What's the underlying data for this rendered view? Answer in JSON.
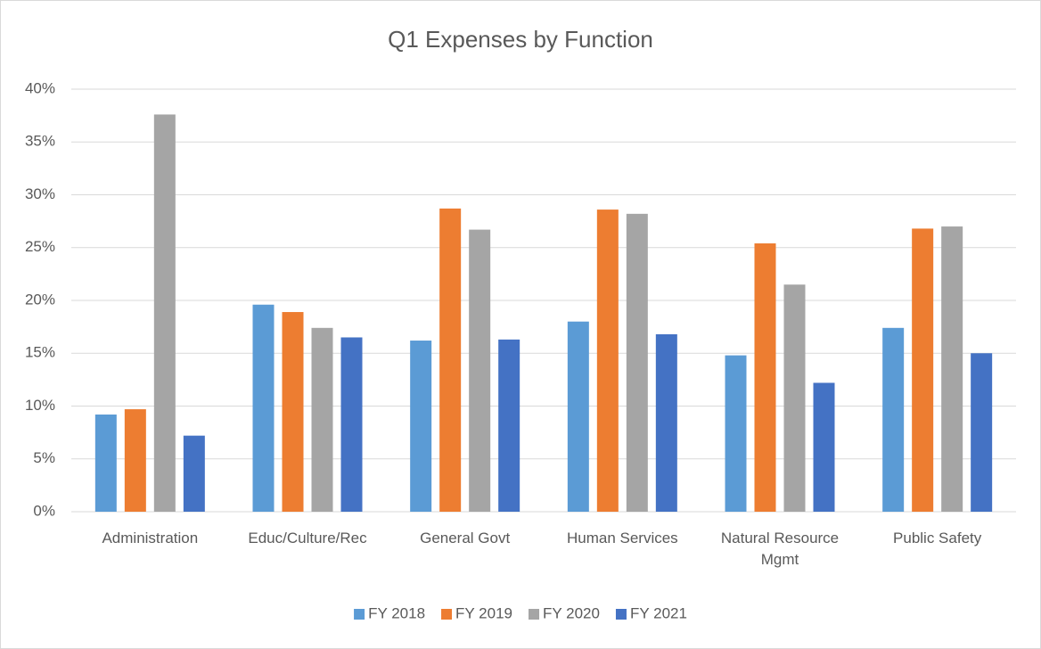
{
  "chart_data": {
    "type": "bar",
    "title": "Q1 Expenses by Function",
    "categories": [
      "Administration",
      "Educ/Culture/Rec",
      "General Govt",
      "Human Services",
      "Natural Resource Mgmt",
      "Public Safety"
    ],
    "series": [
      {
        "name": "FY 2018",
        "color": "#5b9bd5",
        "values": [
          9.2,
          19.6,
          16.2,
          18.0,
          14.8,
          17.4
        ]
      },
      {
        "name": "FY 2019",
        "color": "#ed7d31",
        "values": [
          9.7,
          18.9,
          28.7,
          28.6,
          25.4,
          26.8
        ]
      },
      {
        "name": "FY 2020",
        "color": "#a5a5a5",
        "values": [
          37.6,
          17.4,
          26.7,
          28.2,
          21.5,
          27.0
        ]
      },
      {
        "name": "FY 2021",
        "color": "#4472c4",
        "values": [
          7.2,
          16.5,
          16.3,
          16.8,
          12.2,
          15.0
        ]
      }
    ],
    "ylim": [
      0,
      40
    ],
    "yticks": [
      {
        "value": 0,
        "label": "0%"
      },
      {
        "value": 5,
        "label": "5%"
      },
      {
        "value": 10,
        "label": "10%"
      },
      {
        "value": 15,
        "label": "15%"
      },
      {
        "value": 20,
        "label": "20%"
      },
      {
        "value": 25,
        "label": "25%"
      },
      {
        "value": 30,
        "label": "30%"
      },
      {
        "value": 35,
        "label": "35%"
      },
      {
        "value": 40,
        "label": "40%"
      }
    ],
    "grid": true,
    "legend": "bottom"
  }
}
